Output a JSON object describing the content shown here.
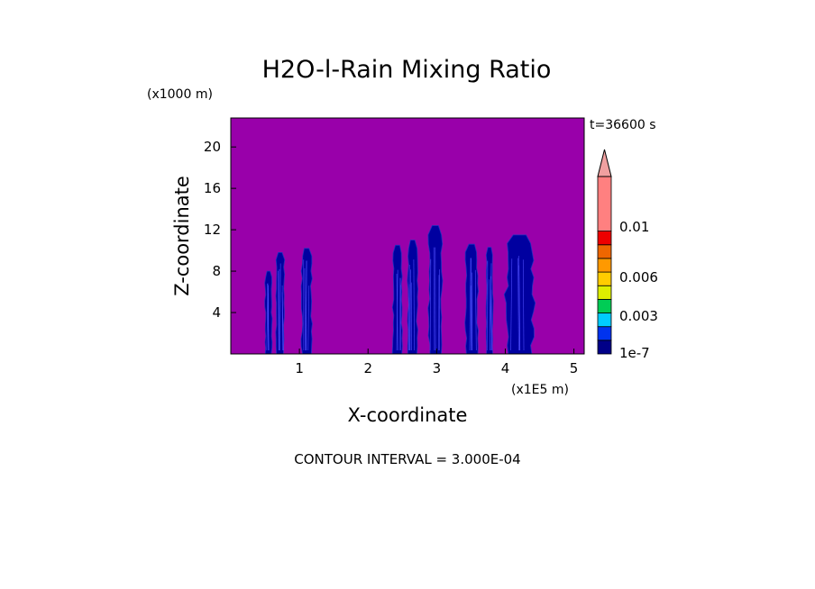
{
  "chart_data": {
    "type": "heatmap",
    "title": "H2O-l-Rain Mixing Ratio",
    "time_label": "t=36600 s",
    "xlabel": "X-coordinate",
    "ylabel": "Z-coordinate",
    "x_unit": "(x1E5 m)",
    "y_unit": "(x1000 m)",
    "xlim": [
      0,
      5.15
    ],
    "ylim": [
      0,
      22.8
    ],
    "x_ticks": [
      "1",
      "2",
      "3",
      "4",
      "5"
    ],
    "x_tick_values": [
      1,
      2,
      3,
      4,
      5
    ],
    "y_ticks": [
      "4",
      "8",
      "12",
      "16",
      "20"
    ],
    "y_tick_values": [
      4,
      8,
      12,
      16,
      20
    ],
    "background_color": "#9900AA",
    "rain_color": "#0000A0",
    "rain_columns": [
      {
        "x0": 0.5,
        "x1": 0.6,
        "ztop": 8.0
      },
      {
        "x0": 0.66,
        "x1": 0.78,
        "ztop": 9.8
      },
      {
        "x0": 1.03,
        "x1": 1.18,
        "ztop": 10.2
      },
      {
        "x0": 2.36,
        "x1": 2.5,
        "ztop": 10.5
      },
      {
        "x0": 2.58,
        "x1": 2.72,
        "ztop": 11.0
      },
      {
        "x0": 2.88,
        "x1": 3.08,
        "ztop": 12.4
      },
      {
        "x0": 3.42,
        "x1": 3.6,
        "ztop": 10.6
      },
      {
        "x0": 3.72,
        "x1": 3.82,
        "ztop": 10.3
      },
      {
        "x0": 4.0,
        "x1": 4.42,
        "ztop": 11.5
      }
    ],
    "colorbar": {
      "colors": [
        "#000088",
        "#0033EE",
        "#00CCFF",
        "#00CC55",
        "#DDEE00",
        "#FFCC00",
        "#FF9900",
        "#EE6600",
        "#EE0000",
        "#FF8080"
      ],
      "extend_color": "#F0A0A0",
      "labels": [
        "1e-7",
        "0.003",
        "0.006",
        "0.01"
      ]
    },
    "contour_interval": "CONTOUR INTERVAL = 3.000E-04"
  }
}
